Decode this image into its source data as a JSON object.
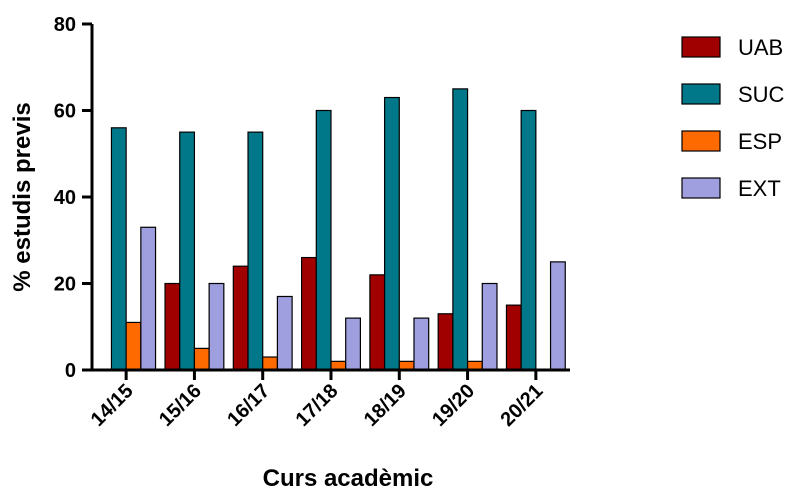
{
  "chart_data": {
    "type": "bar",
    "xlabel": "Curs acadèmic",
    "ylabel": "% estudis previs",
    "ylim": [
      0,
      80
    ],
    "yticks": [
      0,
      20,
      40,
      60,
      80
    ],
    "categories": [
      "14/15",
      "15/16",
      "16/17",
      "17/18",
      "18/19",
      "19/20",
      "20/21"
    ],
    "series": [
      {
        "name": "UAB",
        "color": "#a00000",
        "values": [
          0,
          20,
          24,
          26,
          22,
          13,
          15
        ]
      },
      {
        "name": "SUC",
        "color": "#00788a",
        "values": [
          56,
          55,
          55,
          60,
          63,
          65,
          60
        ]
      },
      {
        "name": "ESP",
        "color": "#ff6a00",
        "values": [
          11,
          5,
          3,
          2,
          2,
          2,
          0
        ]
      },
      {
        "name": "EXT",
        "color": "#9f9fdf",
        "values": [
          33,
          20,
          17,
          12,
          12,
          20,
          25
        ]
      }
    ],
    "legend_position": "right",
    "grid": false
  }
}
